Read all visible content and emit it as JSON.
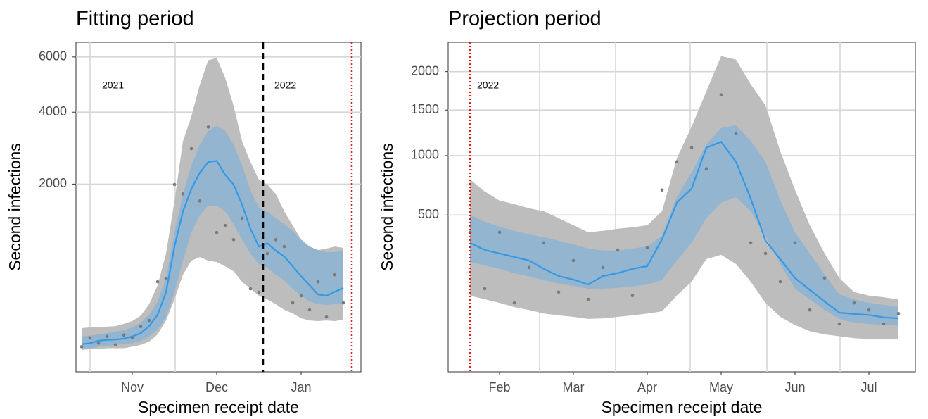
{
  "chart_data": [
    {
      "type": "line",
      "title": "Fitting period",
      "x_label": "Specimen receipt date",
      "y_label": "Second infections",
      "y_scale": "sqrt",
      "ylim": [
        0,
        6600
      ],
      "yticks": [
        2000,
        4000,
        6000
      ],
      "grid": true,
      "annotations": [
        "2021",
        "2022"
      ],
      "categories": [
        null,
        null,
        null,
        null,
        null,
        null,
        "Nov",
        null,
        null,
        null,
        null,
        null,
        null,
        null,
        null,
        null,
        "Dec",
        null,
        null,
        null,
        null,
        null,
        null,
        null,
        null,
        null,
        "Jan",
        null,
        null,
        null,
        null,
        null
      ],
      "bands": [
        {
          "color": "#bdbdbd",
          "upper": [
            58,
            61,
            61,
            64,
            66,
            76,
            89,
            118,
            190,
            348,
            720,
            1630,
            3110,
            3860,
            4940,
            5870,
            5960,
            5200,
            4210,
            3110,
            2540,
            2100,
            1990,
            1780,
            1420,
            1160,
            925,
            820,
            770,
            790,
            820,
            800
          ],
          "lower": [
            4,
            5,
            5,
            6,
            6,
            6,
            8,
            11,
            17,
            36,
            92,
            226,
            457,
            625,
            671,
            625,
            607,
            555,
            497,
            383,
            315,
            254,
            226,
            190,
            152,
            130,
            103,
            92,
            89,
            92,
            89,
            96
          ]
        },
        {
          "color": "#8db4d4",
          "upper": [
            30,
            32,
            36,
            40,
            45,
            50,
            61,
            82,
            122,
            210,
            419,
            1040,
            1780,
            2450,
            3010,
            3420,
            3570,
            3420,
            3010,
            2450,
            1860,
            1490,
            1420,
            1290,
            1185,
            1060,
            925,
            820,
            770,
            740,
            740,
            750
          ],
          "lower": [
            6,
            6,
            8,
            9,
            11,
            12,
            14,
            19,
            30,
            52,
            110,
            284,
            625,
            1040,
            1350,
            1530,
            1530,
            1420,
            1185,
            925,
            720,
            580,
            540,
            457,
            397,
            315,
            254,
            210,
            190,
            185,
            190,
            200
          ]
        }
      ],
      "points": {
        "color": "#7a7a7a",
        "values": [
          8,
          26,
          14,
          30,
          11,
          34,
          26,
          64,
          92,
          383,
          419,
          1990,
          1780,
          2900,
          1630,
          3530,
          1040,
          1160,
          925,
          1290,
          315,
          284,
          720,
          925,
          820,
          200,
          254,
          152,
          383,
          110,
          457,
          200
        ]
      },
      "median": {
        "color": "#3399e6",
        "values": [
          12,
          14,
          19,
          21,
          22,
          24,
          30,
          40,
          66,
          122,
          284,
          820,
          1420,
          1890,
          2270,
          2540,
          2570,
          2220,
          1990,
          1560,
          1100,
          820,
          870,
          760,
          680,
          555,
          441,
          348,
          266,
          254,
          290,
          322
        ]
      }
    },
    {
      "type": "line",
      "title": "Projection period",
      "x_label": "Specimen receipt date",
      "y_label": "Second infections",
      "y_scale": "sqrt",
      "ylim": [
        0,
        2430
      ],
      "yticks": [
        500,
        1000,
        1500,
        2000
      ],
      "grid": true,
      "annotations": [
        "2022"
      ],
      "categories": [
        null,
        null,
        "Feb",
        null,
        null,
        null,
        null,
        "Mar",
        null,
        null,
        null,
        null,
        "Apr",
        null,
        null,
        null,
        null,
        "May",
        null,
        null,
        null,
        null,
        "Jun",
        null,
        null,
        null,
        null,
        "Jul",
        null,
        null
      ],
      "bands": [
        {
          "color": "#bdbdbd",
          "upper": [
            779,
            678,
            606,
            579,
            548,
            527,
            478,
            431,
            387,
            396,
            409,
            418,
            431,
            527,
            974,
            1307,
            1735,
            2222,
            2171,
            1827,
            1556,
            1044,
            690,
            431,
            268,
            157,
            107,
            96,
            91,
            85
          ],
          "lower": [
            96,
            85,
            75,
            64,
            57,
            49,
            45,
            42,
            38,
            39,
            42,
            45,
            49,
            54,
            96,
            143,
            240,
            261,
            217,
            143,
            75,
            42,
            27,
            18,
            14,
            12,
            10,
            9,
            9,
            9
          ]
        },
        {
          "color": "#8db4d4",
          "upper": [
            502,
            454,
            422,
            396,
            374,
            357,
            337,
            317,
            294,
            283,
            283,
            294,
            305,
            366,
            633,
            842,
            1116,
            1291,
            1323,
            1153,
            940,
            606,
            387,
            268,
            171,
            100,
            85,
            75,
            70,
            64
          ],
          "lower": [
            227,
            210,
            195,
            177,
            163,
            149,
            136,
            128,
            118,
            118,
            121,
            126,
            133,
            149,
            233,
            325,
            478,
            590,
            633,
            527,
            366,
            217,
            118,
            85,
            57,
            38,
            31,
            29,
            27,
            26
          ]
        }
      ],
      "points": {
        "color": "#7a7a7a",
        "values": [
          387,
          118,
          387,
          75,
          201,
          325,
          107,
          233,
          85,
          201,
          286,
          96,
          298,
          690,
          940,
          1080,
          874,
          1689,
          1229,
          325,
          268,
          143,
          325,
          57,
          157,
          29,
          75,
          57,
          29,
          49
        ]
      },
      "median": {
        "color": "#3399e6",
        "values": [
          325,
          286,
          268,
          250,
          233,
          195,
          165,
          151,
          133,
          165,
          177,
          195,
          207,
          345,
          590,
          701,
          1080,
          1140,
          940,
          622,
          337,
          240,
          157,
          114,
          79,
          51,
          48,
          46,
          41,
          39
        ]
      }
    }
  ]
}
